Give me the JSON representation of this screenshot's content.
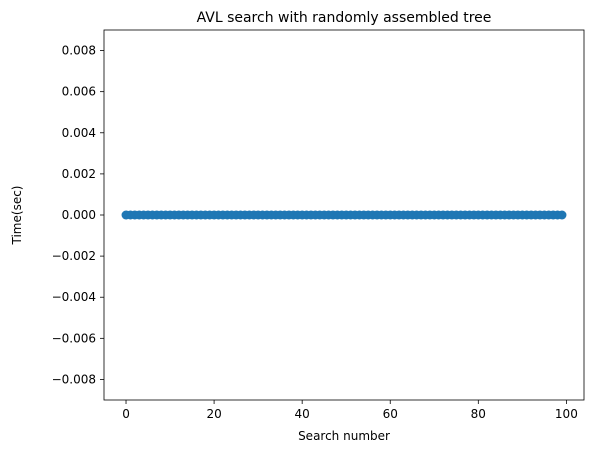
{
  "chart_data": {
    "type": "scatter",
    "title": "AVL search with randomly assembled tree",
    "xlabel": "Search number",
    "ylabel": "Time(sec)",
    "xlim": [
      -5,
      104
    ],
    "ylim": [
      -0.009,
      0.009
    ],
    "xticks": [
      0,
      20,
      40,
      60,
      80,
      100
    ],
    "xtick_labels": [
      "0",
      "20",
      "40",
      "60",
      "80",
      "100"
    ],
    "yticks": [
      0.008,
      0.006,
      0.004,
      0.002,
      0.0,
      -0.002,
      -0.004,
      -0.006,
      -0.008
    ],
    "ytick_labels": [
      "0.008",
      "0.006",
      "0.004",
      "0.002",
      "0.000",
      "−0.002",
      "−0.004",
      "−0.006",
      "−0.008"
    ],
    "grid": false,
    "series": [
      {
        "color": "#1f77b4",
        "x": [
          0,
          1,
          2,
          3,
          4,
          5,
          6,
          7,
          8,
          9,
          10,
          11,
          12,
          13,
          14,
          15,
          16,
          17,
          18,
          19,
          20,
          21,
          22,
          23,
          24,
          25,
          26,
          27,
          28,
          29,
          30,
          31,
          32,
          33,
          34,
          35,
          36,
          37,
          38,
          39,
          40,
          41,
          42,
          43,
          44,
          45,
          46,
          47,
          48,
          49,
          50,
          51,
          52,
          53,
          54,
          55,
          56,
          57,
          58,
          59,
          60,
          61,
          62,
          63,
          64,
          65,
          66,
          67,
          68,
          69,
          70,
          71,
          72,
          73,
          74,
          75,
          76,
          77,
          78,
          79,
          80,
          81,
          82,
          83,
          84,
          85,
          86,
          87,
          88,
          89,
          90,
          91,
          92,
          93,
          94,
          95,
          96,
          97,
          98,
          99
        ],
        "y": [
          0,
          0,
          0,
          0,
          0,
          0,
          0,
          0,
          0,
          0,
          0,
          0,
          0,
          0,
          0,
          0,
          0,
          0,
          0,
          0,
          0,
          0,
          0,
          0,
          0,
          0,
          0,
          0,
          0,
          0,
          0,
          0,
          0,
          0,
          0,
          0,
          0,
          0,
          0,
          0,
          0,
          0,
          0,
          0,
          0,
          0,
          0,
          0,
          0,
          0,
          0,
          0,
          0,
          0,
          0,
          0,
          0,
          0,
          0,
          0,
          0,
          0,
          0,
          0,
          0,
          0,
          0,
          0,
          0,
          0,
          0,
          0,
          0,
          0,
          0,
          0,
          0,
          0,
          0,
          0,
          0,
          0,
          0,
          0,
          0,
          0,
          0,
          0,
          0,
          0,
          0,
          0,
          0,
          0,
          0,
          0,
          0,
          0,
          0,
          0
        ]
      }
    ]
  }
}
